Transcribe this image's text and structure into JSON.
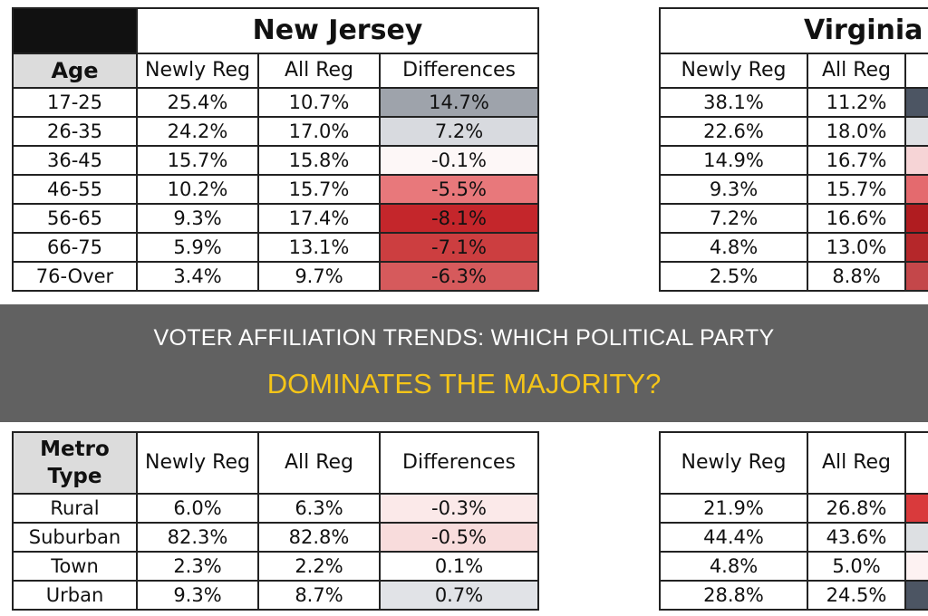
{
  "new_jersey": {
    "title": "New Jersey",
    "age_table": {
      "headers": [
        "Age",
        "Newly Reg",
        "All Reg",
        "Differences"
      ],
      "rows": [
        {
          "label": "17-25",
          "newly": "25.4%",
          "all": "10.7%",
          "diff": "14.7%",
          "color": "#9ea3ab"
        },
        {
          "label": "26-35",
          "newly": "24.2%",
          "all": "17.0%",
          "diff": "7.2%",
          "color": "#d8dadf"
        },
        {
          "label": "36-45",
          "newly": "15.7%",
          "all": "15.8%",
          "diff": "-0.1%",
          "color": "#fdf7f7"
        },
        {
          "label": "46-55",
          "newly": "10.2%",
          "all": "15.7%",
          "diff": "-5.5%",
          "color": "#e8787b"
        },
        {
          "label": "56-65",
          "newly": "9.3%",
          "all": "17.4%",
          "diff": "-8.1%",
          "color": "#c4262b"
        },
        {
          "label": "66-75",
          "newly": "5.9%",
          "all": "13.1%",
          "diff": "-7.1%",
          "color": "#cc3e40"
        },
        {
          "label": "76-Over",
          "newly": "3.4%",
          "all": "9.7%",
          "diff": "-6.3%",
          "color": "#d65a5c"
        }
      ]
    },
    "metro_table": {
      "headers": [
        "Metro Type",
        "Newly Reg",
        "All Reg",
        "Differences"
      ],
      "rows": [
        {
          "label": "Rural",
          "newly": "6.0%",
          "all": "6.3%",
          "diff": "-0.3%",
          "color": "#fbe9e9"
        },
        {
          "label": "Suburban",
          "newly": "82.3%",
          "all": "82.8%",
          "diff": "-0.5%",
          "color": "#f8dcdc"
        },
        {
          "label": "Town",
          "newly": "2.3%",
          "all": "2.2%",
          "diff": "0.1%",
          "color": "#ffffff"
        },
        {
          "label": "Urban",
          "newly": "9.3%",
          "all": "8.7%",
          "diff": "0.7%",
          "color": "#e1e3e7"
        }
      ]
    }
  },
  "virginia": {
    "title": "Virginia",
    "age_table": {
      "headers": [
        "Newly Reg",
        "All Reg"
      ],
      "rows": [
        {
          "newly": "38.1%",
          "all": "11.2%",
          "color": "#4c5563"
        },
        {
          "newly": "22.6%",
          "all": "18.0%",
          "color": "#dfe1e4"
        },
        {
          "newly": "14.9%",
          "all": "16.7%",
          "color": "#f6d4d6"
        },
        {
          "newly": "9.3%",
          "all": "15.7%",
          "color": "#e46a6e"
        },
        {
          "newly": "7.2%",
          "all": "16.6%",
          "color": "#b01c20"
        },
        {
          "newly": "4.8%",
          "all": "13.0%",
          "color": "#b5272a"
        },
        {
          "newly": "2.5%",
          "all": "8.8%",
          "color": "#c4474a"
        }
      ]
    },
    "metro_table": {
      "headers": [
        "Newly Reg",
        "All Reg"
      ],
      "rows": [
        {
          "newly": "21.9%",
          "all": "26.8%",
          "color": "#d93a3c"
        },
        {
          "newly": "44.4%",
          "all": "43.6%",
          "color": "#dde0e3"
        },
        {
          "newly": "4.8%",
          "all": "5.0%",
          "color": "#fdf2f2"
        },
        {
          "newly": "28.8%",
          "all": "24.5%",
          "color": "#4c5563"
        }
      ]
    }
  },
  "overlay": {
    "line1": "VOTER AFFILIATION TRENDS: WHICH POLITICAL PARTY",
    "line2": "DOMINATES THE MAJORITY?",
    "line2_color": "#f5c518"
  }
}
